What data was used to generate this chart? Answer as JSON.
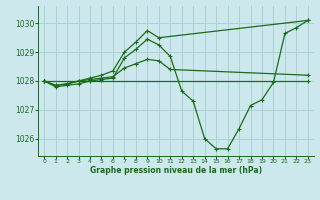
{
  "title": "Graphe pression niveau de la mer (hPa)",
  "background_color": "#cce8ec",
  "grid_color": "#aad0d8",
  "line_color": "#1a6b1a",
  "xlim": [
    -0.5,
    23.5
  ],
  "ylim": [
    1025.4,
    1030.6
  ],
  "yticks": [
    1026,
    1027,
    1028,
    1029,
    1030
  ],
  "xticks": [
    0,
    1,
    2,
    3,
    4,
    5,
    6,
    7,
    8,
    9,
    10,
    11,
    12,
    13,
    14,
    15,
    16,
    17,
    18,
    19,
    20,
    21,
    22,
    23
  ],
  "series": [
    {
      "x": [
        0,
        1,
        2,
        3,
        4,
        5,
        6,
        7,
        8,
        9,
        10,
        11,
        12,
        13,
        14,
        15,
        16,
        17,
        18,
        19,
        20,
        21,
        22,
        23
      ],
      "y": [
        1028.0,
        1027.8,
        1027.85,
        1027.9,
        1028.0,
        1028.05,
        1028.1,
        1028.8,
        1029.1,
        1029.45,
        1029.25,
        1028.85,
        1027.65,
        1027.3,
        1026.0,
        1025.65,
        1025.65,
        1026.35,
        1027.15,
        1027.35,
        1027.95,
        1029.65,
        1029.85,
        1030.1
      ]
    },
    {
      "x": [
        0,
        1,
        2,
        3,
        4,
        5,
        6,
        7,
        8,
        9,
        10,
        23
      ],
      "y": [
        1028.0,
        1027.85,
        1027.9,
        1028.0,
        1028.1,
        1028.2,
        1028.35,
        1029.0,
        1029.35,
        1029.75,
        1029.5,
        1030.1
      ]
    },
    {
      "x": [
        0,
        1,
        2,
        3,
        4,
        5,
        6,
        7,
        8,
        9,
        10,
        11,
        23
      ],
      "y": [
        1028.0,
        1027.85,
        1027.9,
        1028.0,
        1028.05,
        1028.1,
        1028.15,
        1028.45,
        1028.6,
        1028.75,
        1028.7,
        1028.4,
        1028.2
      ]
    },
    {
      "x": [
        0,
        23
      ],
      "y": [
        1028.0,
        1028.0
      ]
    }
  ]
}
